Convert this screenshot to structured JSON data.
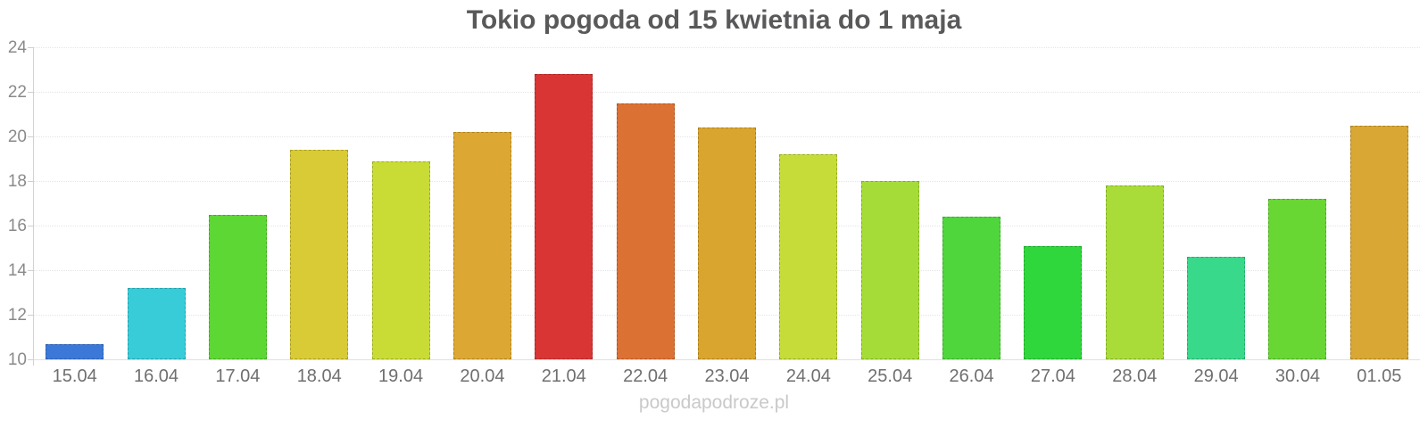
{
  "watermark": "pogodapodroze.pl",
  "chart_data": {
    "type": "bar",
    "title": "Tokio pogoda od 15 kwietnia do 1 maja",
    "xlabel": "",
    "ylabel": "",
    "ylim": [
      10,
      24
    ],
    "yticks": [
      10,
      12,
      14,
      16,
      18,
      20,
      22,
      24
    ],
    "grid": true,
    "legend": false,
    "categories": [
      "15.04",
      "16.04",
      "17.04",
      "18.04",
      "19.04",
      "20.04",
      "21.04",
      "22.04",
      "23.04",
      "24.04",
      "25.04",
      "26.04",
      "27.04",
      "28.04",
      "29.04",
      "30.04",
      "01.05"
    ],
    "values": [
      10.7,
      13.2,
      16.5,
      19.4,
      18.9,
      20.2,
      22.8,
      21.5,
      20.4,
      19.2,
      18.0,
      16.4,
      15.1,
      17.8,
      14.6,
      17.2,
      20.5
    ],
    "bar_colors": [
      "#3c78d8",
      "#38ccd8",
      "#5dd733",
      "#d9cb35",
      "#c9dc36",
      "#dca833",
      "#d93534",
      "#dc7134",
      "#d9a52e",
      "#c6dc38",
      "#a6dc37",
      "#4fd63c",
      "#2fd63c",
      "#a9dc39",
      "#38d98a",
      "#68d733",
      "#d9a733"
    ]
  }
}
